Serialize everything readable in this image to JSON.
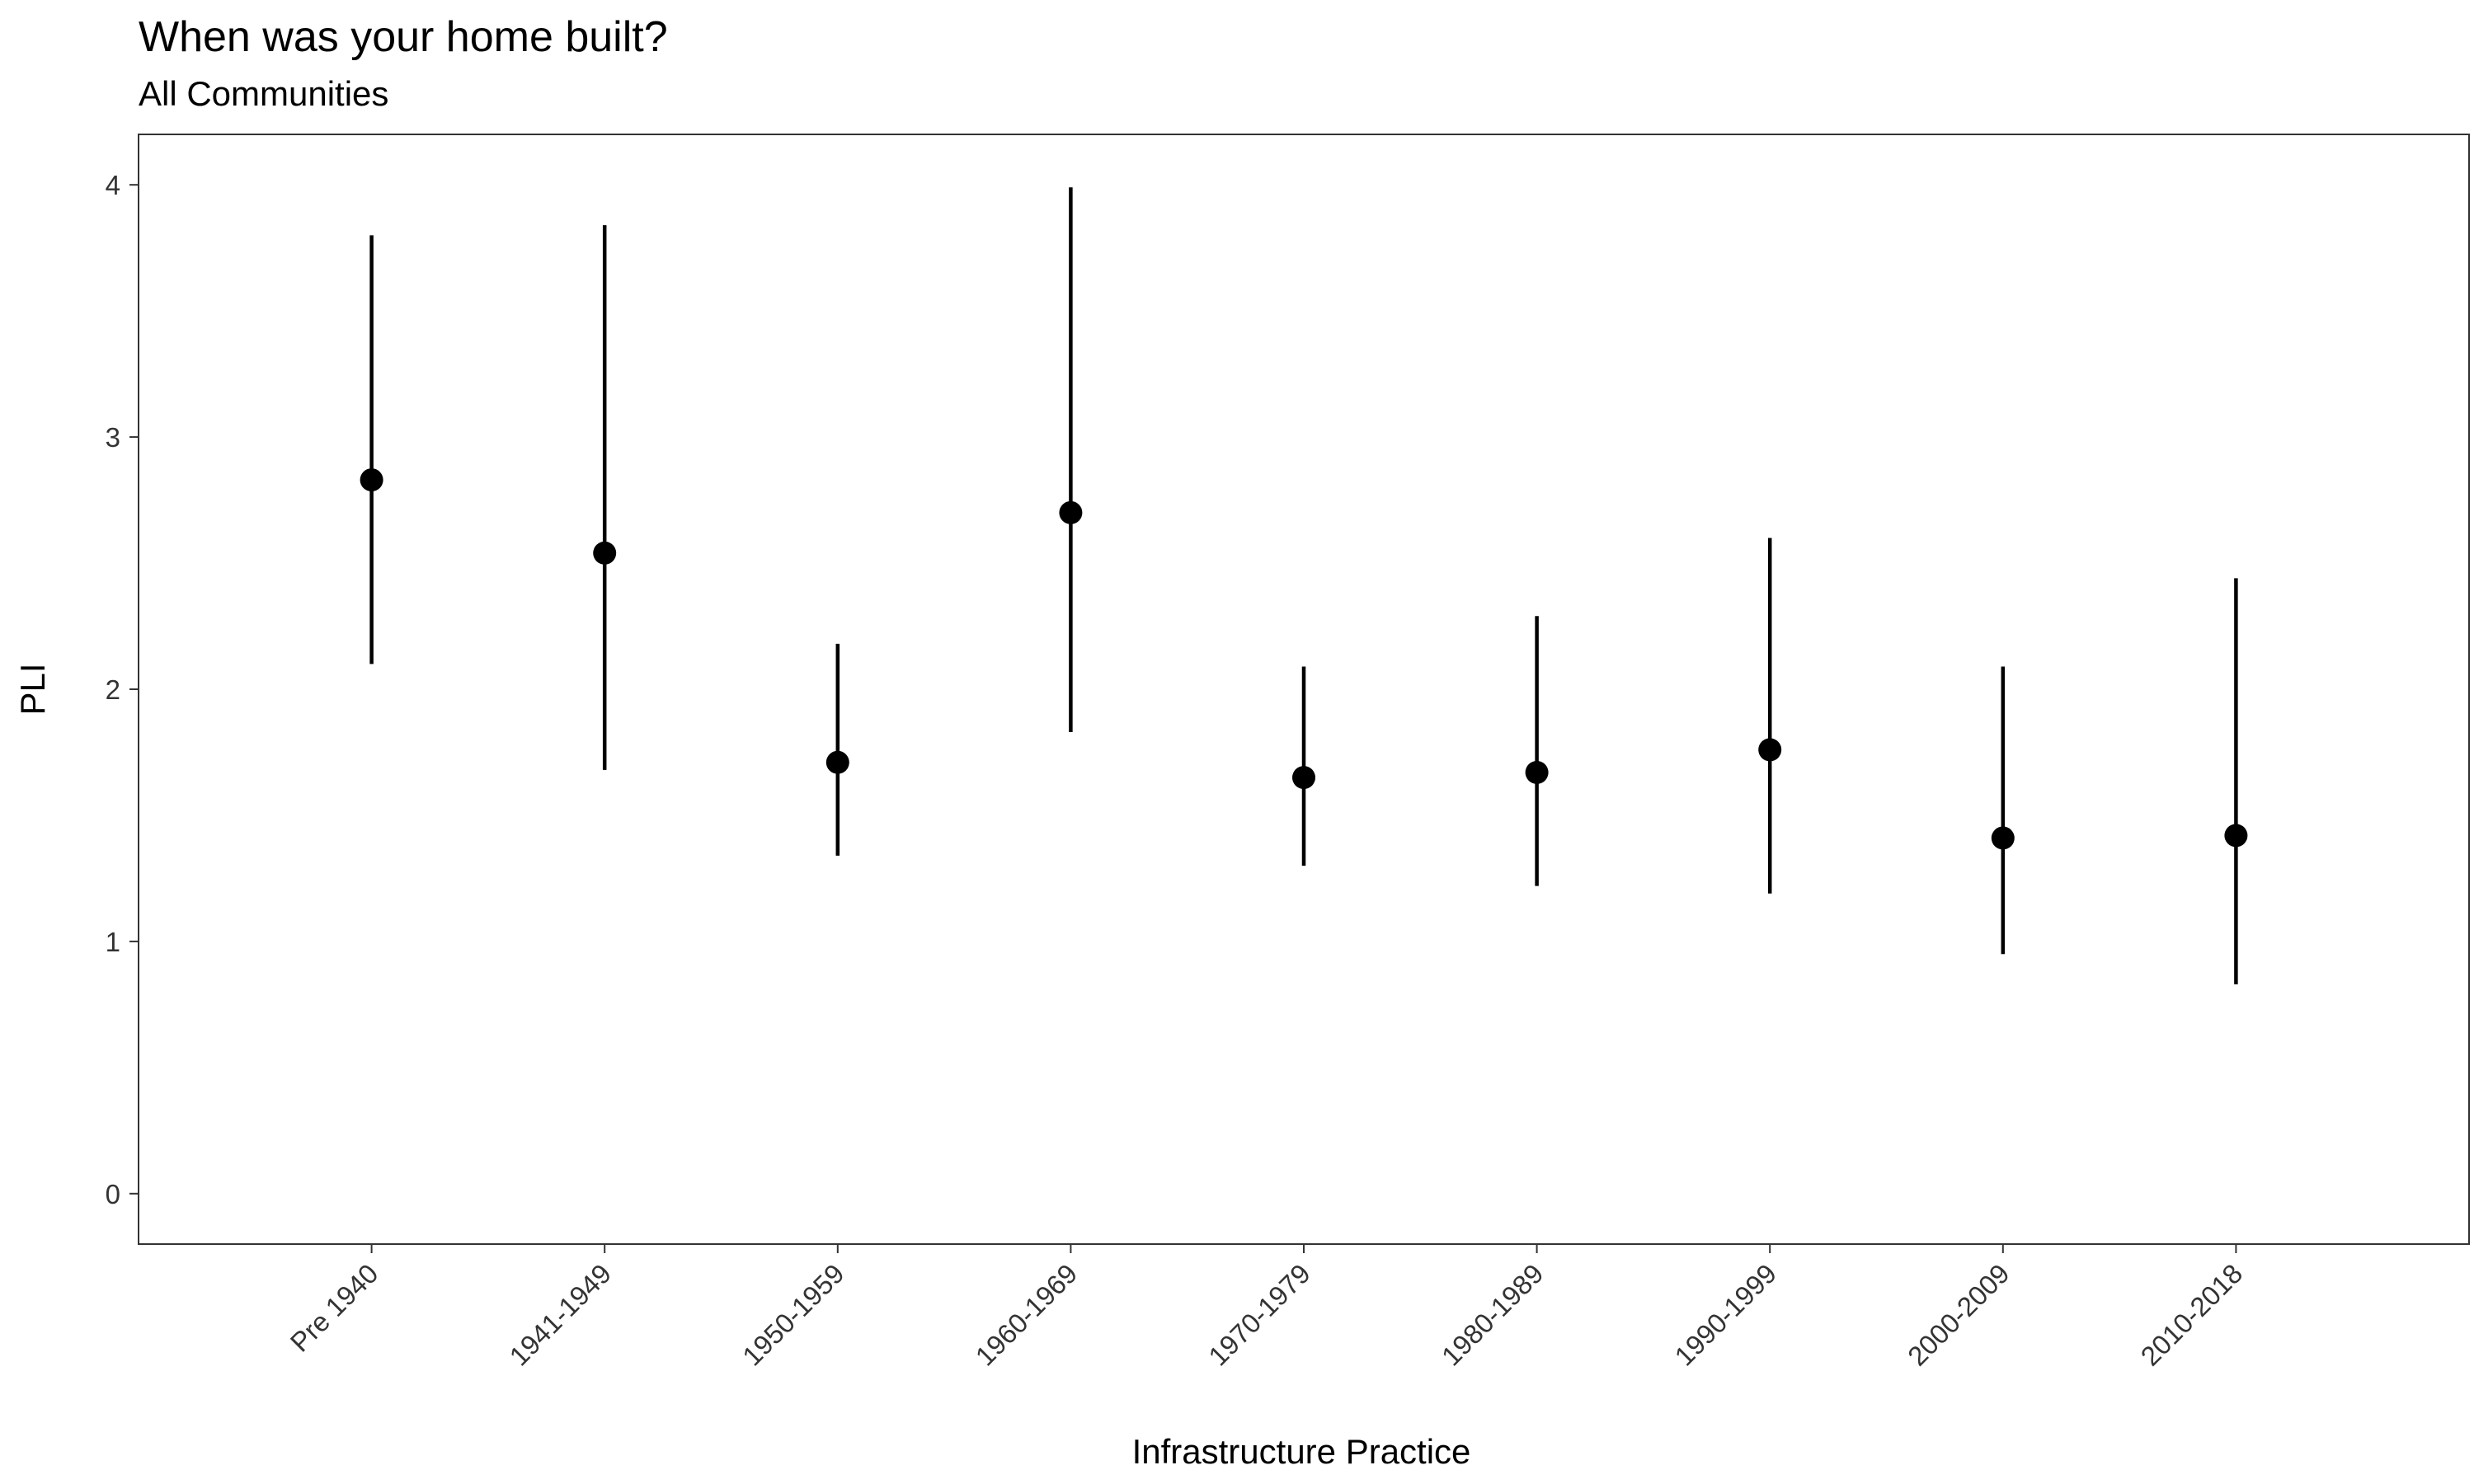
{
  "chart_data": {
    "type": "errorbar",
    "title": "When was your home built?",
    "subtitle": "All Communities",
    "xlabel": "Infrastructure Practice",
    "ylabel": "PLI",
    "categories": [
      "Pre 1940",
      "1941-1949",
      "1950-1959",
      "1960-1969",
      "1970-1979",
      "1980-1989",
      "1990-1999",
      "2000-2009",
      "2010-2018"
    ],
    "values": [
      2.83,
      2.54,
      1.71,
      2.7,
      1.65,
      1.67,
      1.76,
      1.41,
      1.42
    ],
    "lower": [
      2.1,
      1.68,
      1.34,
      1.83,
      1.3,
      1.22,
      1.19,
      0.95,
      0.83
    ],
    "upper": [
      3.8,
      3.84,
      2.18,
      3.99,
      2.09,
      2.29,
      2.6,
      2.09,
      2.44
    ],
    "ylim": [
      -0.2,
      4.2
    ],
    "yticks": [
      0,
      1,
      2,
      3,
      4
    ],
    "grid": false,
    "legend": "none",
    "colors": {
      "marks": "#000000",
      "panel_border": "#333333",
      "axis_text": "#333333"
    }
  }
}
